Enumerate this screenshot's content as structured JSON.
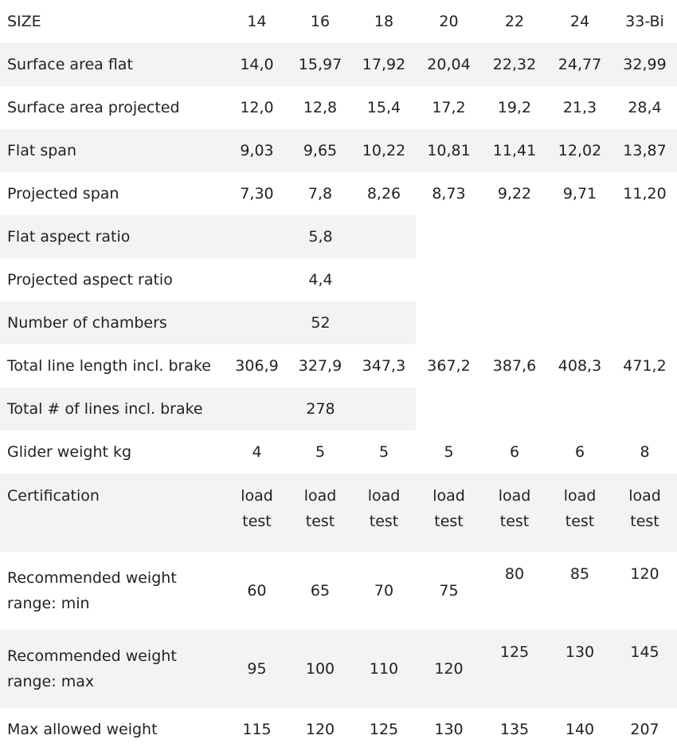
{
  "header": {
    "label": "SIZE",
    "sizes": [
      "14",
      "16",
      "18",
      "20",
      "22",
      "24",
      "33-Bi"
    ]
  },
  "rows": {
    "surface_flat": {
      "label": "Surface area flat",
      "v": [
        "14,0",
        "15,97",
        "17,92",
        "20,04",
        "22,32",
        "24,77",
        "32,99"
      ]
    },
    "surface_projected": {
      "label": "Surface area projected",
      "v": [
        "12,0",
        "12,8",
        "15,4",
        "17,2",
        "19,2",
        "21,3",
        "28,4"
      ]
    },
    "flat_span": {
      "label": "Flat span",
      "v": [
        "9,03",
        "9,65",
        "10,22",
        "10,81",
        "11,41",
        "12,02",
        "13,87"
      ]
    },
    "projected_span": {
      "label": "Projected span",
      "v": [
        "7,30",
        "7,8",
        "8,26",
        "8,73",
        "9,22",
        "9,71",
        "11,20"
      ]
    },
    "flat_aspect": {
      "label": "Flat aspect ratio",
      "value": "5,8"
    },
    "projected_aspect": {
      "label": "Projected aspect ratio",
      "value": "4,4"
    },
    "chambers": {
      "label": "Number of chambers",
      "value": "52"
    },
    "line_length": {
      "label": "Total line length incl. brake",
      "v": [
        "306,9",
        "327,9",
        "347,3",
        "367,2",
        "387,6",
        "408,3",
        "471,2"
      ]
    },
    "lines_count": {
      "label": "Total # of lines incl. brake",
      "value": "278"
    },
    "glider_weight": {
      "label": "Glider weight kg",
      "v": [
        "4",
        "5",
        "5",
        "5",
        "6",
        "6",
        "8"
      ]
    },
    "certification": {
      "label": "Certification",
      "v": [
        "load test",
        "load test",
        "load test",
        "load test",
        "load test",
        "load test",
        "load test"
      ]
    },
    "weight_min": {
      "label": "Recommended weight range: min",
      "v": [
        "60",
        "65",
        "70",
        "75",
        "80",
        "85",
        "120"
      ]
    },
    "weight_max": {
      "label": "Recommended weight range: max",
      "v": [
        "95",
        "100",
        "110",
        "120",
        "125",
        "130",
        "145"
      ]
    },
    "max_allowed": {
      "label": "Max allowed weight",
      "v": [
        "115",
        "120",
        "125",
        "130",
        "135",
        "140",
        "207"
      ]
    }
  }
}
